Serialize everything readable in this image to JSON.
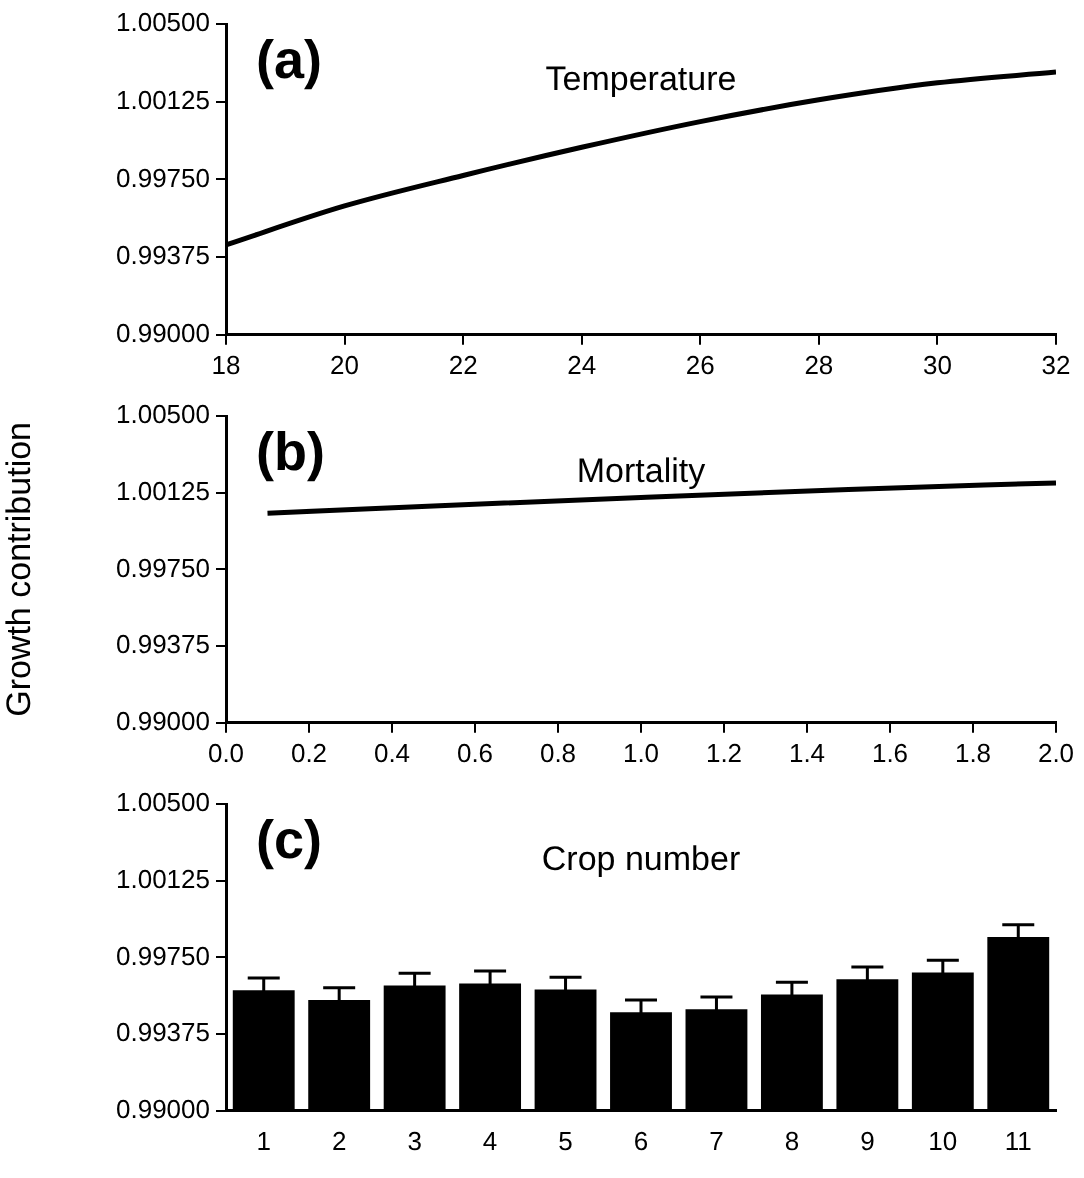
{
  "chart_data": [
    {
      "type": "line",
      "title": "(a)",
      "subtitle": "Temperature",
      "x": [
        18,
        20,
        22,
        24,
        26,
        28,
        30,
        32
      ],
      "series": [
        {
          "color": "#000000",
          "values": [
            0.99434,
            0.99622,
            0.99769,
            0.99905,
            1.00029,
            1.00134,
            1.00216,
            1.00268
          ]
        }
      ],
      "xlim": [
        18,
        32
      ],
      "xticks": [
        18,
        20,
        22,
        24,
        26,
        28,
        30,
        32
      ],
      "ylim": [
        0.99,
        1.005
      ],
      "yticks": [
        {
          "value": 0.99,
          "label": "0.99000"
        },
        {
          "value": 0.99375,
          "label": "0.99375"
        },
        {
          "value": 0.9975,
          "label": "0.99750"
        },
        {
          "value": 1.00125,
          "label": "1.00125"
        },
        {
          "value": 1.005,
          "label": "1.00500"
        }
      ],
      "grid": false,
      "legend": false,
      "marker": "none",
      "line_style": "solid"
    },
    {
      "type": "line",
      "title": "(b)",
      "subtitle": "Mortality",
      "ylabel": "Growth contribution",
      "x": [
        0.1,
        0.5,
        1.0,
        1.5,
        2.0
      ],
      "series": [
        {
          "color": "#000000",
          "values": [
            1.00025,
            1.0006,
            1.00102,
            1.00141,
            1.00173
          ]
        }
      ],
      "xlim": [
        0,
        2
      ],
      "xticks": [
        {
          "value": 0,
          "label": "0.0"
        },
        {
          "value": 0.2,
          "label": "0.2"
        },
        {
          "value": 0.4,
          "label": "0.4"
        },
        {
          "value": 0.6,
          "label": "0.6"
        },
        {
          "value": 0.8,
          "label": "0.8"
        },
        {
          "value": 1,
          "label": "1.0"
        },
        {
          "value": 1.2,
          "label": "1.2"
        },
        {
          "value": 1.4,
          "label": "1.4"
        },
        {
          "value": 1.6,
          "label": "1.6"
        },
        {
          "value": 1.8,
          "label": "1.8"
        },
        {
          "value": 2,
          "label": "2.0"
        }
      ],
      "ylim": [
        0.99,
        1.005
      ],
      "yticks": [
        {
          "value": 0.99,
          "label": "0.99000"
        },
        {
          "value": 0.99375,
          "label": "0.99375"
        },
        {
          "value": 0.9975,
          "label": "0.99750"
        },
        {
          "value": 1.00125,
          "label": "1.00125"
        },
        {
          "value": 1.005,
          "label": "1.00500"
        }
      ],
      "grid": false,
      "legend": false,
      "marker": "none",
      "line_style": "solid"
    },
    {
      "type": "bar",
      "title": "(c)",
      "subtitle": "Crop number",
      "categories": [
        "1",
        "2",
        "3",
        "4",
        "5",
        "6",
        "7",
        "8",
        "9",
        "10",
        "11"
      ],
      "values": [
        0.99589,
        0.99542,
        0.99613,
        0.99623,
        0.99593,
        0.99482,
        0.99496,
        0.99569,
        0.99643,
        0.99676,
        0.9985
      ],
      "errors": [
        0.0006,
        0.0006,
        0.0006,
        0.0006,
        0.0006,
        0.0006,
        0.0006,
        0.0006,
        0.0006,
        0.0006,
        0.0006
      ],
      "color": "#000000",
      "ylim": [
        0.99,
        1.005
      ],
      "yticks": [
        {
          "value": 0.99,
          "label": "0.99000"
        },
        {
          "value": 0.99375,
          "label": "0.99375"
        },
        {
          "value": 0.9975,
          "label": "0.99750"
        },
        {
          "value": 1.00125,
          "label": "1.00125"
        },
        {
          "value": 1.005,
          "label": "1.00500"
        }
      ],
      "grid": false,
      "legend": false
    }
  ]
}
